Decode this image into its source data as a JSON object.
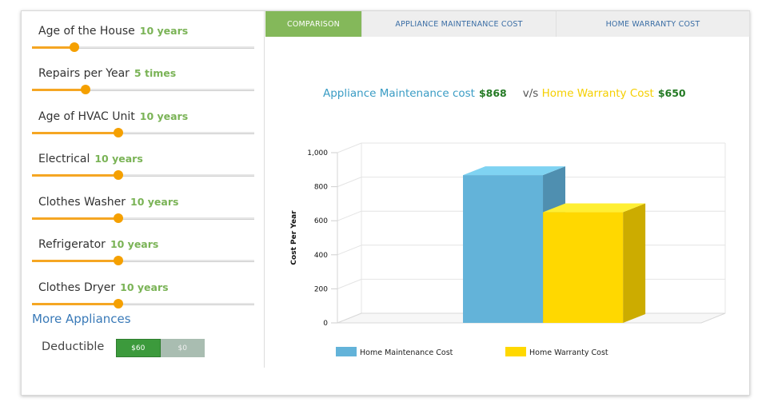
{
  "sliders": [
    {
      "label": "Age of the House",
      "value": "10 years",
      "fraction": 0.19
    },
    {
      "label": "Repairs per Year",
      "value": "5 times",
      "fraction": 0.24
    },
    {
      "label": "Age of HVAC Unit",
      "value": "10 years",
      "fraction": 0.39
    },
    {
      "label": "Electrical",
      "value": "10 years",
      "fraction": 0.39
    },
    {
      "label": "Clothes Washer",
      "value": "10 years",
      "fraction": 0.39
    },
    {
      "label": "Refrigerator",
      "value": "10 years",
      "fraction": 0.39
    },
    {
      "label": "Clothes Dryer",
      "value": "10 years",
      "fraction": 0.39
    }
  ],
  "more_appliances": "More Appliances",
  "deductible": {
    "label": "Deductible",
    "options": [
      "$60",
      "$0"
    ],
    "selected": "$60"
  },
  "tabs": [
    "COMPARISON",
    "APPLIANCE MAINTENANCE COST",
    "HOME WARRANTY COST"
  ],
  "active_tab": "COMPARISON",
  "heading": {
    "maint_label": "Appliance Maintenance cost",
    "maint_value": "$868",
    "vs": "v/s",
    "warranty_label": "Home Warranty Cost",
    "warranty_value": "$650"
  },
  "colors": {
    "accent": "#84b85a",
    "slider": "#f5a623",
    "maint": "#63b3d9",
    "warranty": "#ffd800"
  },
  "chart_data": {
    "type": "bar",
    "categories": [
      "Home Maintenance Cost",
      "Home Warranty Cost"
    ],
    "values": [
      868,
      650
    ],
    "ylabel": "Cost Per Year",
    "xlabel": "",
    "ylim": [
      0,
      1000
    ],
    "yticks": [
      0,
      200,
      400,
      600,
      800,
      1000
    ],
    "ytick_labels": [
      "0",
      "200",
      "400",
      "600",
      "800",
      "1,000"
    ],
    "legend": [
      "Home Maintenance Cost",
      "Home Warranty Cost"
    ],
    "legend_position": "bottom",
    "grid": true,
    "style": "3d"
  }
}
